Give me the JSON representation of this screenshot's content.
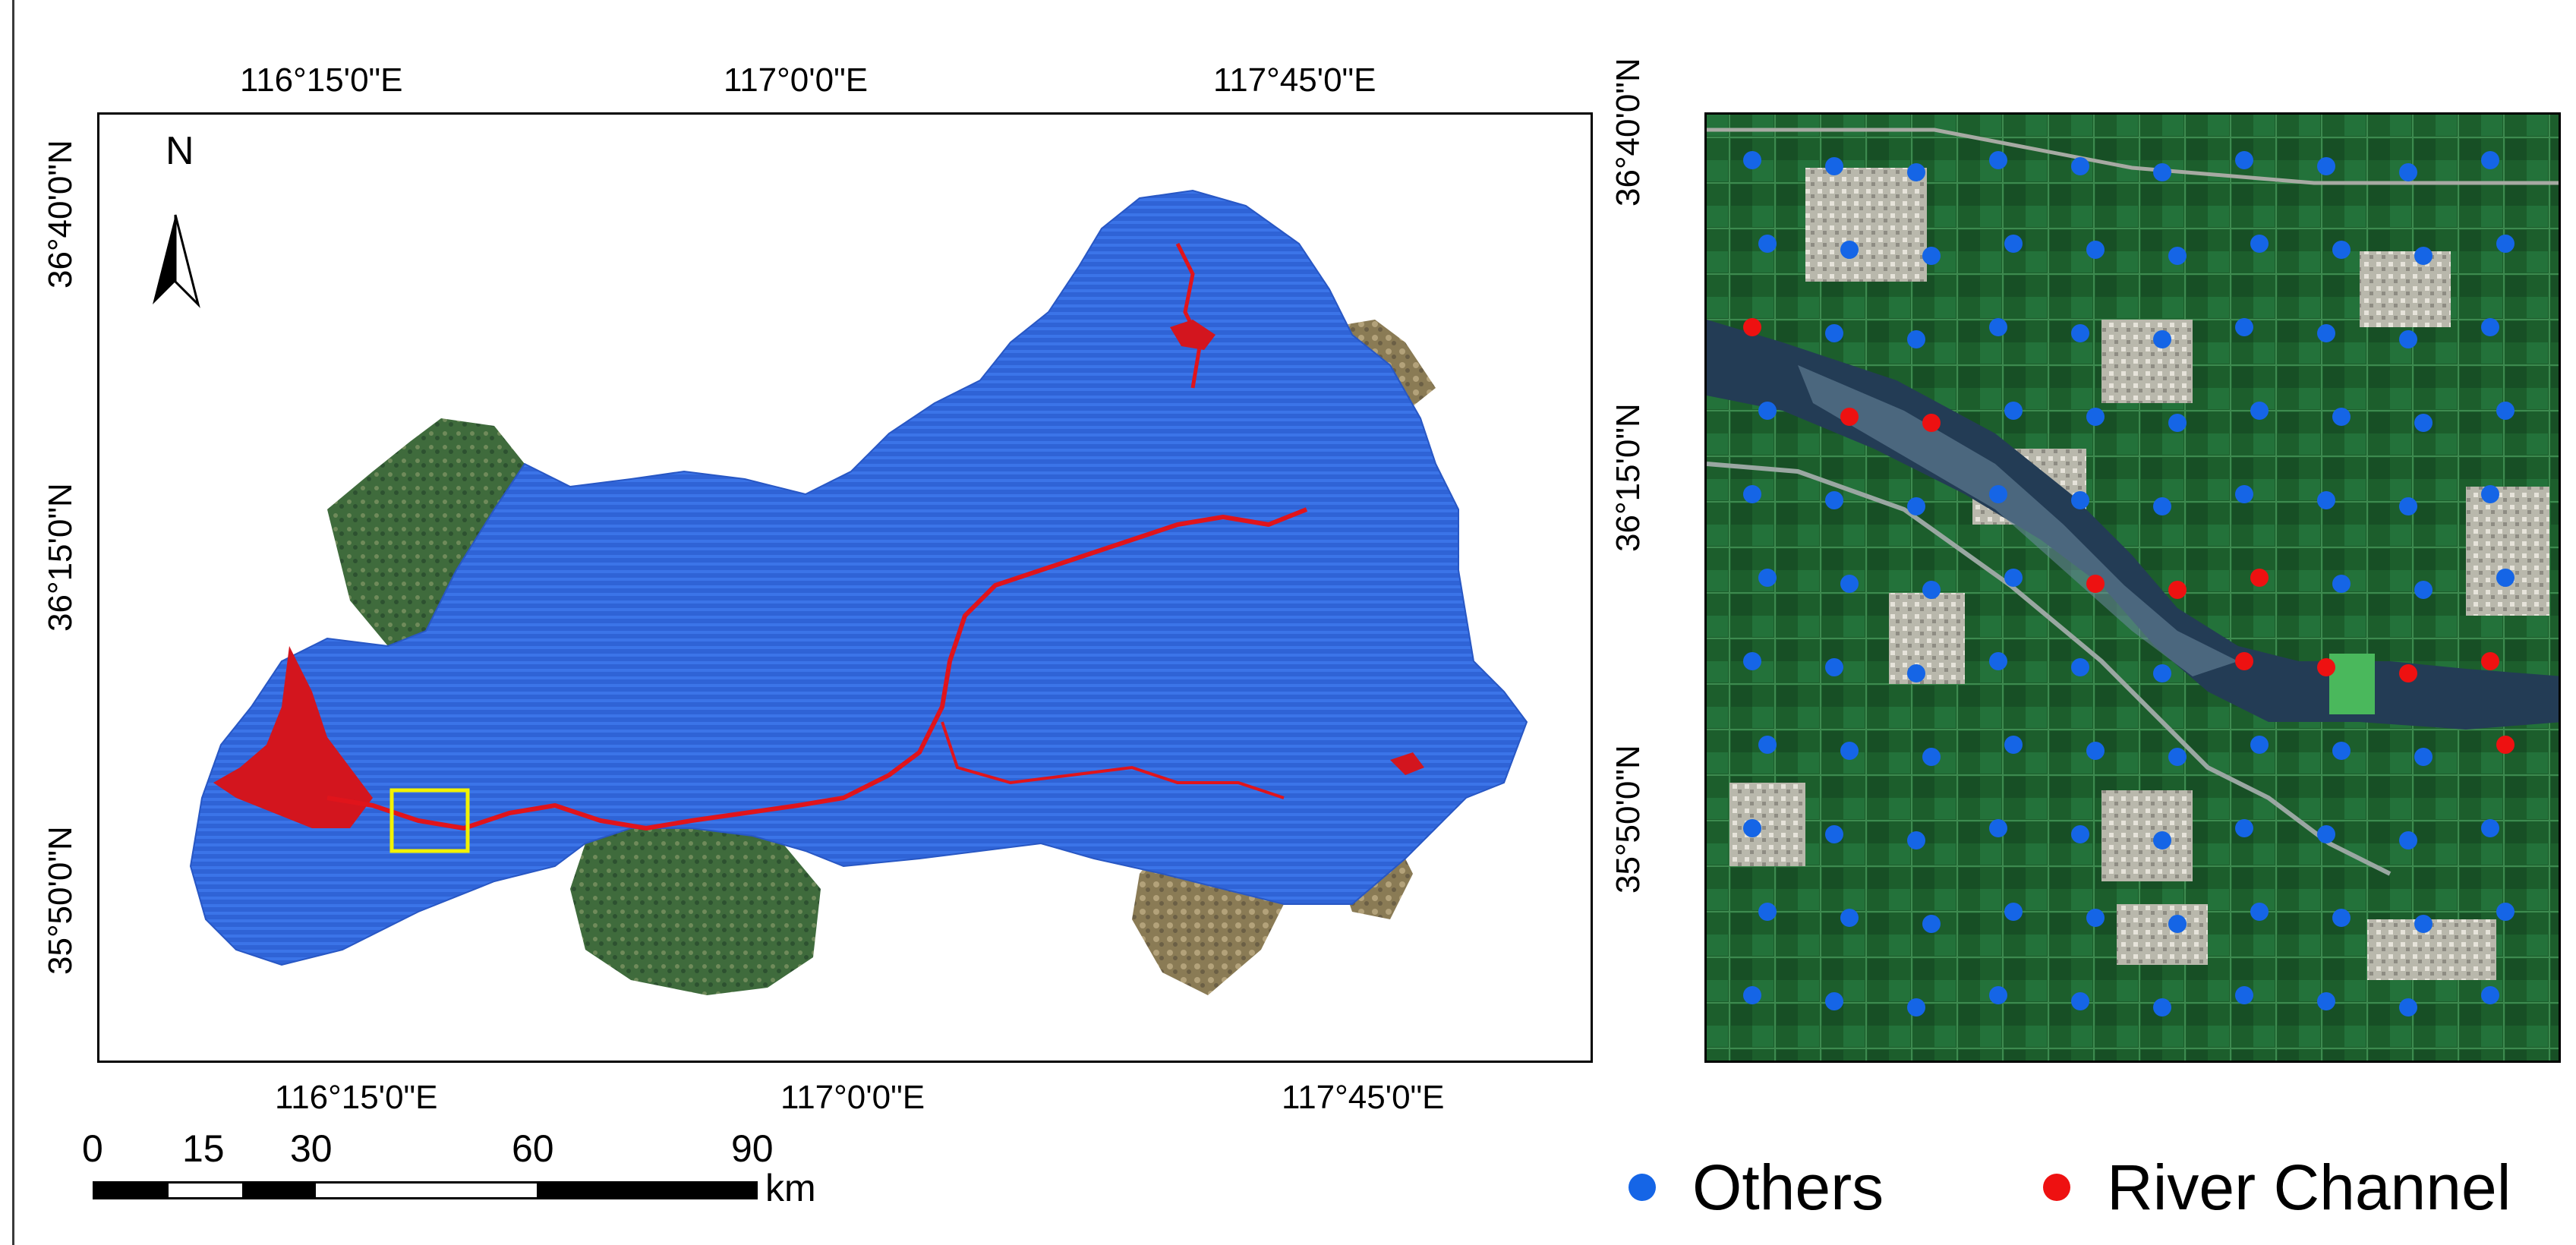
{
  "map": {
    "north_label": "N",
    "top_lon_labels": [
      "116°15'0\"E",
      "117°0'0\"E",
      "117°45'0\"E"
    ],
    "bottom_lon_labels": [
      "116°15'0\"E",
      "117°0'0\"E",
      "117°45'0\"E"
    ],
    "left_lat_labels": [
      "36°40'0\"N",
      "36°15'0\"N",
      "35°50'0\"N"
    ],
    "right_lat_labels": [
      "36°40'0\"N",
      "36°15'0\"N",
      "35°50'0\"N"
    ]
  },
  "scale_bar": {
    "ticks": [
      "0",
      "15",
      "30",
      "60",
      "90"
    ],
    "unit": "km"
  },
  "legend": {
    "items": [
      {
        "label": "Others",
        "color": "#1565e6"
      },
      {
        "label": "River Channel",
        "color": "#ee1111"
      }
    ]
  },
  "colors": {
    "basin_blue": "#2d5fd0",
    "river_red": "#e0141b",
    "highlight_box": "#f2f200",
    "satellite_green": "#1f6b33"
  }
}
